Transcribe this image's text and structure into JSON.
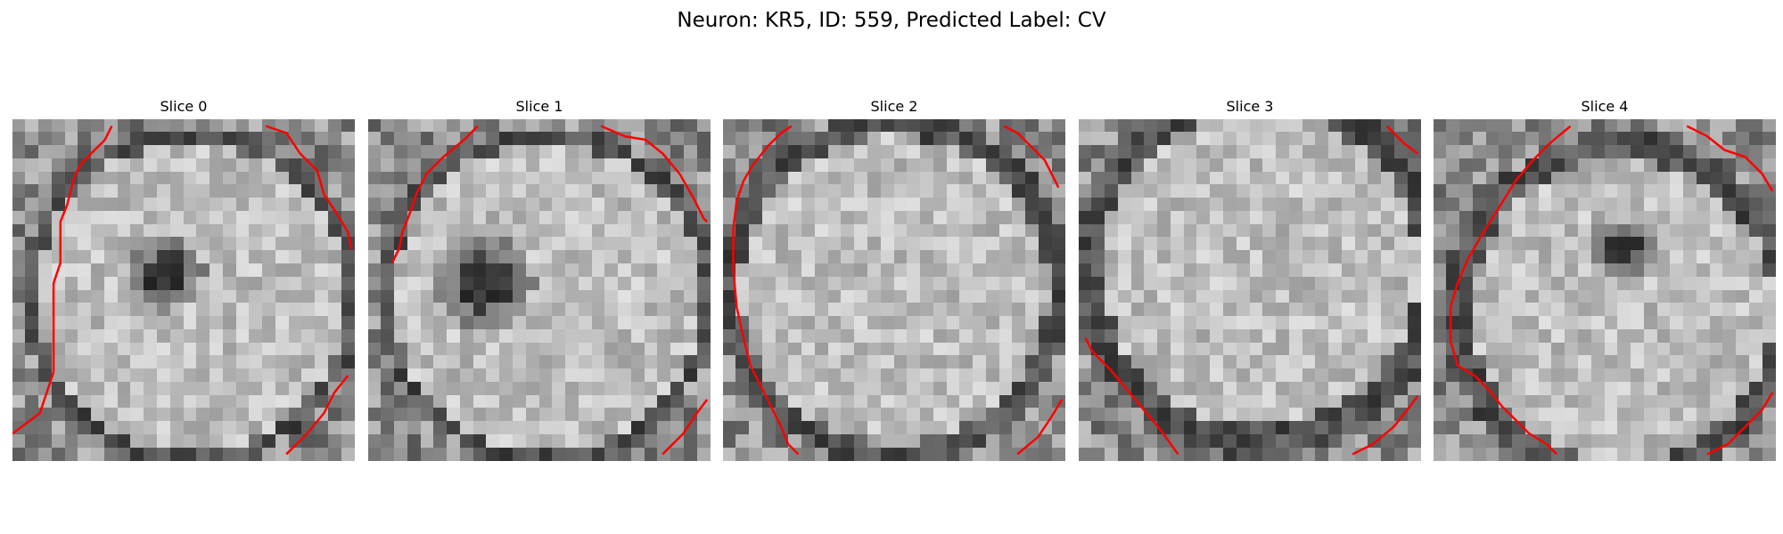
{
  "figure": {
    "title": "Neuron: KR5, ID: 559, Predicted Label: CV"
  },
  "contour_color": "#ff0000",
  "slices": [
    {
      "title": "Slice 0",
      "contour": "[[0,0.92],[0.08,0.86],[0.1,0.8],[0.12,0.74],[0.12,0.48],[0.14,0.42],[0.14,0.3],[0.16,0.25],[0.18,0.17],[0.2,0.13],[0.27,0.06],[0.29,0.02]]"
    },
    {
      "title": "Slice 1",
      "contour": "[[0.07,0.42],[0.09,0.38],[0.1,0.33],[0.12,0.28],[0.14,0.22],[0.17,0.16],[0.22,0.11],[0.28,0.06],[0.32,0.02]]"
    },
    {
      "title": "Slice 2",
      "contour": "[[0.22,0.98],[0.19,0.95],[0.17,0.9],[0.14,0.84],[0.11,0.78],[0.08,0.72],[0.06,0.64],[0.04,0.55],[0.03,0.44],[0.03,0.32],[0.04,0.24],[0.06,0.18],[0.09,0.13],[0.13,0.08],[0.17,0.04],[0.2,0.02]]"
    },
    {
      "title": "Slice 3",
      "contour": "[[0.02,0.64],[0.04,0.68],[0.09,0.73],[0.14,0.79],[0.19,0.85],[0.24,0.91],[0.29,0.98]]"
    },
    {
      "title": "Slice 4",
      "contour": "[[0.36,0.98],[0.33,0.95],[0.28,0.92],[0.24,0.88],[0.2,0.84],[0.16,0.79],[0.12,0.75],[0.07,0.72],[0.05,0.65],[0.05,0.55],[0.07,0.48],[0.1,0.41],[0.14,0.34],[0.19,0.26],[0.24,0.18],[0.29,0.12],[0.34,0.07],[0.4,0.02]]"
    }
  ]
}
